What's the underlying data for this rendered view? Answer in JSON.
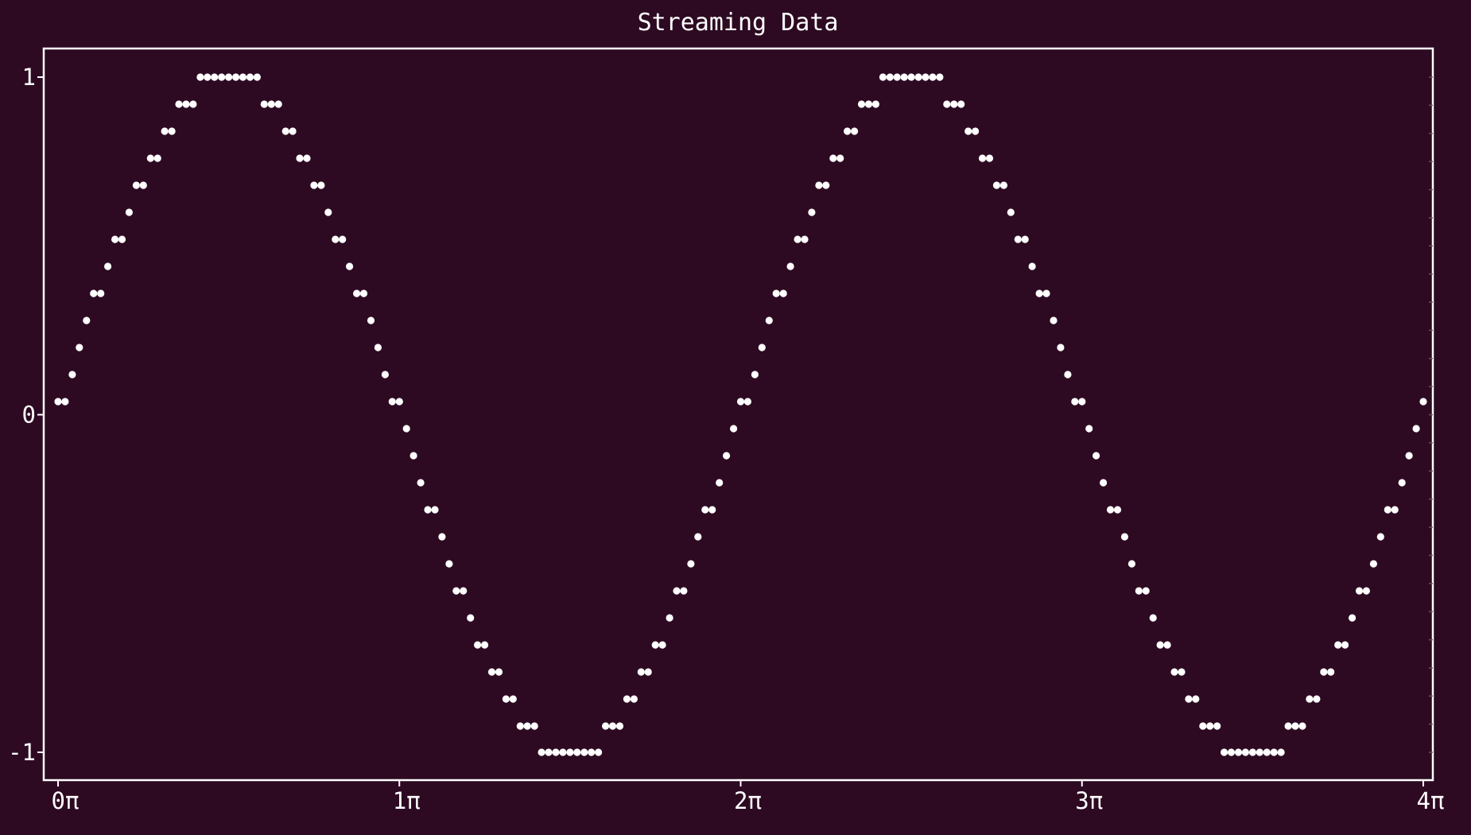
{
  "chart_data": {
    "type": "scatter",
    "title": "Streaming Data",
    "xlabel": "",
    "ylabel": "",
    "xlim": [
      0,
      4
    ],
    "ylim": [
      -1,
      1
    ],
    "x_unit": "π",
    "x_ticks": [
      {
        "value": 0,
        "label": "0π"
      },
      {
        "value": 1,
        "label": "1π"
      },
      {
        "value": 2,
        "label": "2π"
      },
      {
        "value": 3,
        "label": "3π"
      },
      {
        "value": 4,
        "label": "4π"
      }
    ],
    "y_ticks": [
      {
        "value": 1,
        "label": "1"
      },
      {
        "value": 0,
        "label": "0"
      },
      {
        "value": -1,
        "label": "-1"
      }
    ],
    "grid": false,
    "legend": "none",
    "marker": "dot",
    "x_step": 0.04166667,
    "series": [
      {
        "x": [
          0.0,
          0.0417,
          0.0833,
          0.125,
          0.1667,
          0.2083,
          0.25,
          0.2917,
          0.3333,
          0.375,
          0.4167,
          0.4583,
          0.5,
          0.5417,
          0.5833,
          0.625,
          0.6667,
          0.7083,
          0.75,
          0.7917,
          0.8333,
          0.875,
          0.9167,
          0.9583,
          1.0,
          1.0417,
          1.0833,
          1.125,
          1.1667,
          1.2083,
          1.25,
          1.2917,
          1.3333,
          1.375,
          1.4167,
          1.4583,
          1.5,
          1.5417,
          1.5833,
          1.625,
          1.6667,
          1.7083,
          1.75,
          1.7917,
          1.8333,
          1.875,
          1.9167,
          1.9583,
          2.0,
          2.0417,
          2.0833,
          2.125,
          2.1667,
          2.2083,
          2.25,
          2.2917,
          2.3333,
          2.375,
          2.4167,
          2.4583,
          2.5,
          2.5417,
          2.5833,
          2.625,
          2.6667,
          2.7083,
          2.75,
          2.7917,
          2.8333,
          2.875,
          2.9167,
          2.9583,
          3.0,
          3.0417,
          3.0833,
          3.125,
          3.1667,
          3.2083,
          3.25,
          3.2917,
          3.3333,
          3.375,
          3.4167,
          3.4583,
          3.5,
          3.5417,
          3.5833,
          3.625,
          3.6667,
          3.7083,
          3.75,
          3.7917,
          3.8333,
          3.875,
          3.9167,
          3.9583,
          4.0
        ],
        "y": [
          0.0,
          0.1305,
          0.2588,
          0.3827,
          0.5,
          0.6088,
          0.7071,
          0.7934,
          0.866,
          0.9239,
          0.9659,
          0.9914,
          1.0,
          0.9914,
          0.9659,
          0.9239,
          0.866,
          0.7934,
          0.7071,
          0.6088,
          0.5,
          0.3827,
          0.2588,
          0.1305,
          0.0,
          -0.1305,
          -0.2588,
          -0.3827,
          -0.5,
          -0.6088,
          -0.7071,
          -0.7934,
          -0.866,
          -0.9239,
          -0.9659,
          -0.9914,
          -1.0,
          -0.9914,
          -0.9659,
          -0.9239,
          -0.866,
          -0.7934,
          -0.7071,
          -0.6088,
          -0.5,
          -0.3827,
          -0.2588,
          -0.1305,
          0.0,
          0.1305,
          0.2588,
          0.3827,
          0.5,
          0.6088,
          0.7071,
          0.7934,
          0.866,
          0.9239,
          0.9659,
          0.9914,
          1.0,
          0.9914,
          0.9659,
          0.9239,
          0.866,
          0.7934,
          0.7071,
          0.6088,
          0.5,
          0.3827,
          0.2588,
          0.1305,
          0.0,
          -0.1305,
          -0.2588,
          -0.3827,
          -0.5,
          -0.6088,
          -0.7071,
          -0.7934,
          -0.866,
          -0.9239,
          -0.9659,
          -0.9914,
          -1.0,
          -0.9914,
          -0.9659,
          -0.9239,
          -0.866,
          -0.7934,
          -0.7071,
          -0.6088,
          -0.5,
          -0.3827,
          -0.2588,
          -0.1305,
          0.0
        ]
      }
    ]
  },
  "colors": {
    "background": "#2d0a22",
    "foreground": "#ffffff"
  }
}
